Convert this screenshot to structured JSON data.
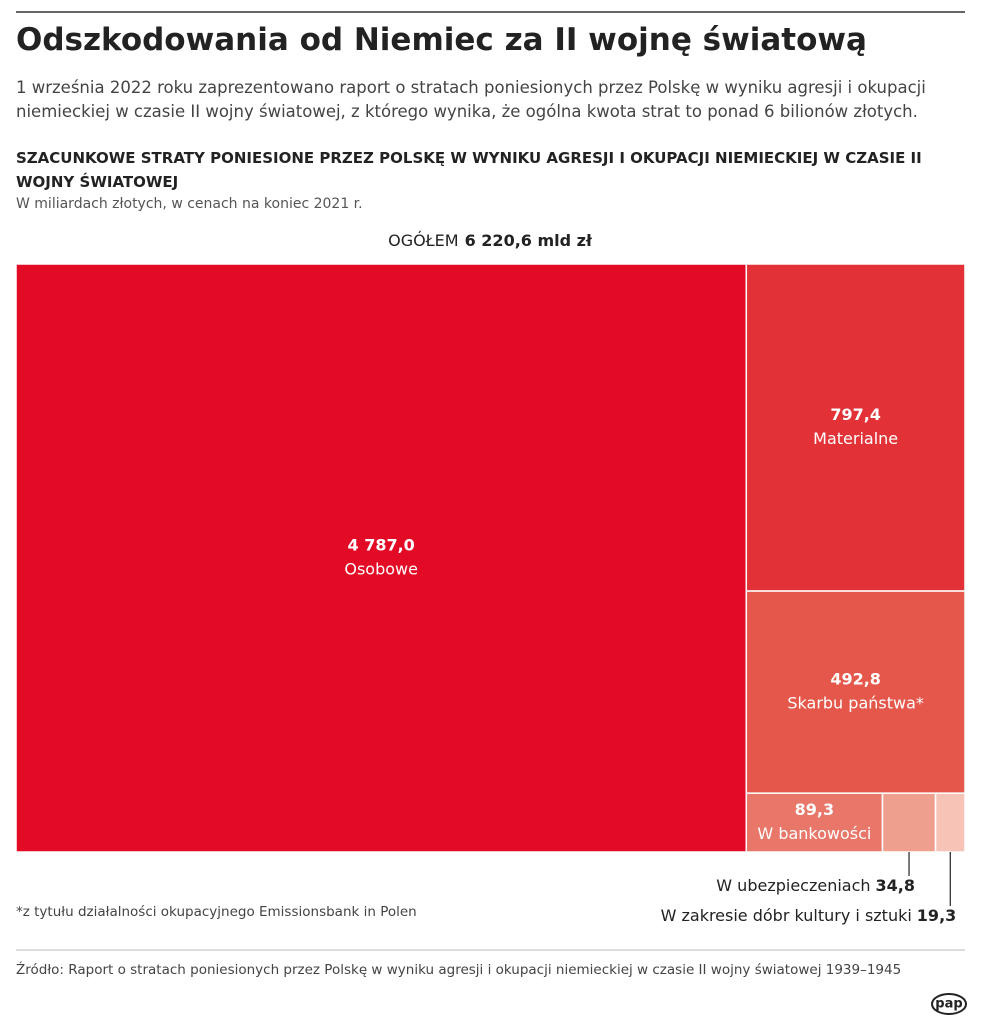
{
  "title": "Odszkodowania od Niemiec za II wojnę światową",
  "subtitle": "1 września 2022 roku zaprezentowano raport o stratach poniesionych przez Polskę w wyniku agresji i okupacji niemieckiej w czasie II wojny światowej, z którego wynika, że ogólna kwota strat to ponad 6 bilionów złotych.",
  "chart_data": {
    "type": "treemap",
    "title": "SZACUNKOWE STRATY PONIESIONE PRZEZ POLSKĘ W WYNIKU AGRESJI I OKUPACJI NIEMIECKIEJ W CZASIE II WOJNY ŚWIATOWEJ",
    "subtitle": "W miliardach złotych, w cenach na koniec 2021 r.",
    "total_prefix": "OGÓŁEM",
    "total_label": "6 220,6 mld zł",
    "categories": [
      "Osobowe",
      "Materialne",
      "Skarbu państwa*",
      "W bankowości",
      "W ubezpieczeniach",
      "W zakresie dóbr kultury i sztuki"
    ],
    "values": [
      4787.0,
      797.4,
      492.8,
      89.3,
      34.8,
      19.3
    ],
    "value_labels": [
      "4 787,0",
      "797,4",
      "492,8",
      "89,3",
      "34,8",
      "19,3"
    ],
    "colors": [
      "#e30a25",
      "#e23237",
      "#e5574a",
      "#e8776a",
      "#ef9f8e",
      "#f6c3b6"
    ]
  },
  "footnote": "*z tytułu działalności okupacyjnego Emissionsbank in Polen",
  "source": "Źródło: Raport o stratach poniesionych przez Polskę w wyniku agresji i okupacji niemieckiej w czasie II wojny światowej 1939–1945",
  "logo": "pap"
}
